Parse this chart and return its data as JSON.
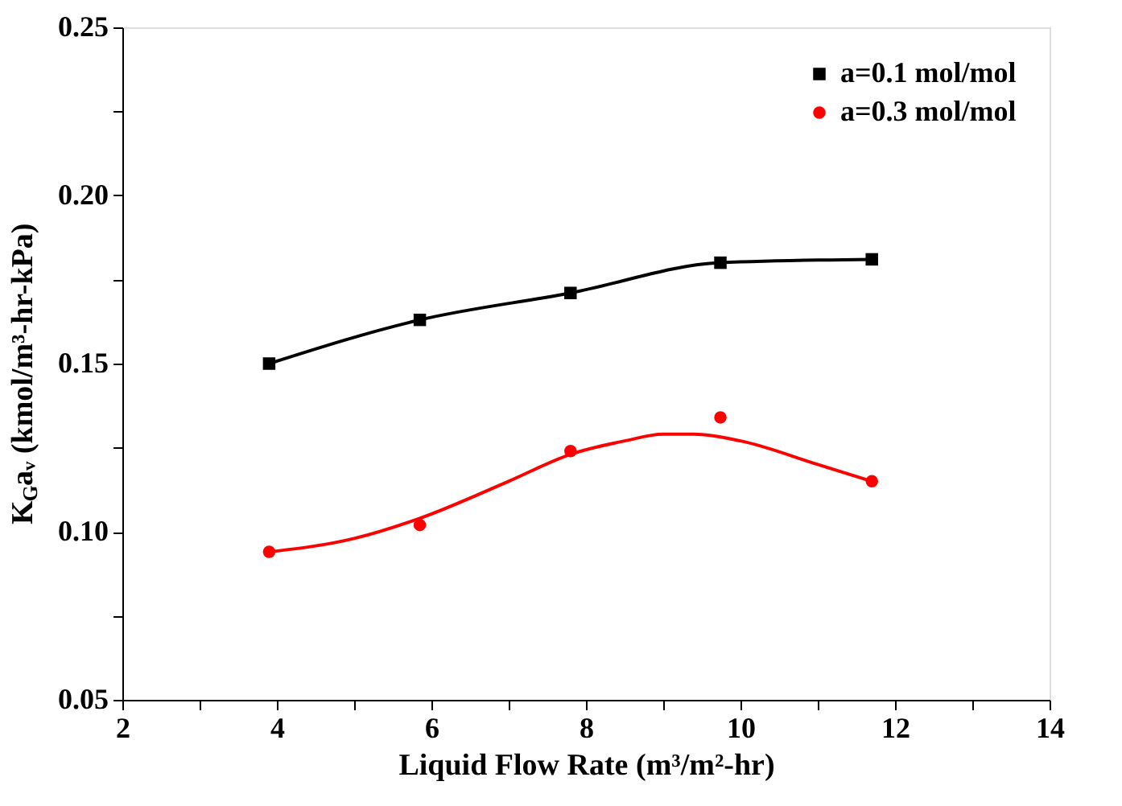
{
  "chart_data": {
    "type": "scatter",
    "xlabel": "Liquid Flow Rate (m³/m²-hr)",
    "ylabel": "K$_{G}$aᵥ (kmol/m³-hr-kPa)",
    "xlim": [
      2,
      14
    ],
    "xticks": [
      2,
      {
        "value": 3,
        "label": null
      },
      4,
      {
        "value": 5,
        "label": null
      },
      6,
      {
        "value": 7,
        "label": null
      },
      8,
      {
        "value": 9,
        "label": null
      },
      10,
      {
        "value": 11,
        "label": null
      },
      12,
      {
        "value": 13,
        "label": null
      },
      14
    ],
    "ylim": [
      0.05,
      0.25
    ],
    "yticks": [
      {
        "value": 0.05,
        "label": "0.05"
      },
      {
        "value": 0.075,
        "label": null
      },
      {
        "value": 0.1,
        "label": "0.10"
      },
      {
        "value": 0.125,
        "label": null
      },
      {
        "value": 0.15,
        "label": "0.15"
      },
      {
        "value": 0.175,
        "label": null
      },
      {
        "value": 0.2,
        "label": "0.20"
      },
      {
        "value": 0.225,
        "label": null
      },
      {
        "value": 0.25,
        "label": "0.25"
      }
    ],
    "grid": false,
    "legend": "top right",
    "series": [
      {
        "name": "a=0.1 mol/mol",
        "type": "line",
        "marker": "square",
        "color": "#000000",
        "x": [
          3.9,
          5.85,
          7.8,
          9.74,
          11.7
        ],
        "values": [
          0.15,
          0.163,
          0.171,
          0.18,
          0.181
        ]
      },
      {
        "name": "a=0.3 mol/mol",
        "marker": "circle",
        "color": "#ff0000",
        "x": [
          3.9,
          5.85,
          7.8,
          9.74,
          11.7
        ],
        "values": [
          0.094,
          0.102,
          0.124,
          0.134,
          0.115
        ]
      },
      {
        "type": "line",
        "marker": "none",
        "color": "#ff0000",
        "x": [
          3.9,
          5.0,
          5.85,
          7.0,
          7.8,
          8.5,
          9.0,
          9.4,
          10.0,
          11.0,
          11.7
        ],
        "values": [
          0.094,
          0.098,
          0.104,
          0.115,
          0.123,
          0.127,
          0.129,
          0.129,
          0.127,
          0.12,
          0.115
        ]
      }
    ]
  }
}
